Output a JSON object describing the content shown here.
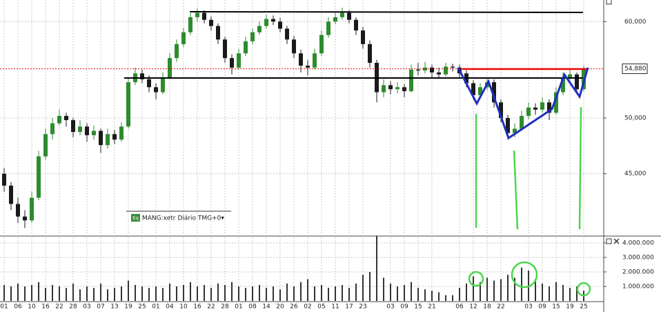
{
  "chart_data": [
    {
      "type": "candlestick",
      "legend_icon": "Eq",
      "legend_label": "MANG:xetr Diário TMG+0▾",
      "log_scale": true,
      "grid": true,
      "up_color": "#2e8b2e",
      "down_color": "#1a1a1a",
      "ylim": [
        40100,
        62500
      ],
      "yticks": [
        {
          "value": 45000,
          "label": "45,000"
        },
        {
          "value": 50000,
          "label": "50,000"
        },
        {
          "value": 60000,
          "label": "60,000"
        }
      ],
      "last_price": {
        "value": 54880,
        "label": "54,880"
      },
      "categories": [
        "01",
        null,
        "06",
        null,
        "10",
        null,
        "16",
        null,
        "22",
        null,
        "28",
        null,
        "03",
        null,
        "07",
        null,
        "13",
        null,
        "19",
        null,
        "25",
        null,
        "01",
        null,
        "04",
        null,
        "10",
        null,
        "16",
        null,
        "22",
        null,
        "28",
        null,
        "01",
        null,
        "08",
        null,
        "14",
        null,
        "20",
        null,
        "26",
        null,
        "02",
        null,
        "05",
        null,
        "11",
        null,
        "17",
        null,
        "23",
        null,
        null,
        null,
        "03",
        null,
        "09",
        null,
        "15",
        null,
        "21",
        null,
        null,
        null,
        "06",
        null,
        "12",
        null,
        "18",
        null,
        "22",
        null,
        null,
        null,
        "03",
        null,
        "09",
        null,
        "15",
        null,
        "19",
        null,
        "25"
      ],
      "ohlc": [
        [
          45000,
          45500,
          43500,
          44000
        ],
        [
          44000,
          44300,
          42000,
          42500
        ],
        [
          42500,
          43000,
          41000,
          41500
        ],
        [
          41500,
          42000,
          40600,
          41200
        ],
        [
          41200,
          43500,
          41000,
          43000
        ],
        [
          43000,
          47000,
          42800,
          46500
        ],
        [
          46500,
          49000,
          46200,
          48500
        ],
        [
          48500,
          50000,
          48000,
          49500
        ],
        [
          49500,
          50800,
          49300,
          50200
        ],
        [
          50200,
          50500,
          49200,
          49800
        ],
        [
          49800,
          50000,
          48200,
          48700
        ],
        [
          48700,
          49800,
          48400,
          49200
        ],
        [
          49200,
          49500,
          47800,
          48400
        ],
        [
          48400,
          49300,
          48000,
          48800
        ],
        [
          48800,
          49000,
          46800,
          47500
        ],
        [
          47500,
          49000,
          47200,
          48500
        ],
        [
          48500,
          48900,
          47600,
          48000
        ],
        [
          48000,
          49600,
          47800,
          49200
        ],
        [
          49200,
          54000,
          49000,
          53500
        ],
        [
          53500,
          55000,
          53200,
          54400
        ],
        [
          54400,
          54800,
          53400,
          53800
        ],
        [
          53800,
          54200,
          52500,
          53000
        ],
        [
          53000,
          53400,
          51800,
          52500
        ],
        [
          52500,
          54500,
          52300,
          54000
        ],
        [
          54000,
          56500,
          53800,
          56000
        ],
        [
          56000,
          58000,
          55600,
          57500
        ],
        [
          57500,
          59300,
          57200,
          58800
        ],
        [
          58800,
          61000,
          58500,
          60500
        ],
        [
          60500,
          61500,
          60000,
          61000
        ],
        [
          61000,
          61300,
          59800,
          60200
        ],
        [
          60200,
          60600,
          59000,
          59500
        ],
        [
          59500,
          59800,
          57500,
          58000
        ],
        [
          58000,
          58300,
          55500,
          56000
        ],
        [
          56000,
          56400,
          54300,
          55000
        ],
        [
          55000,
          57000,
          54800,
          56500
        ],
        [
          56500,
          58300,
          56200,
          57800
        ],
        [
          57800,
          59200,
          57500,
          58800
        ],
        [
          58800,
          60000,
          58500,
          59500
        ],
        [
          59500,
          60800,
          59200,
          60300
        ],
        [
          60300,
          60700,
          59600,
          60000
        ],
        [
          60000,
          60400,
          58800,
          59200
        ],
        [
          59200,
          59500,
          57500,
          58000
        ],
        [
          58000,
          58400,
          56000,
          56500
        ],
        [
          56500,
          56900,
          54500,
          55200
        ],
        [
          55200,
          55800,
          54200,
          55000
        ],
        [
          55000,
          57000,
          54800,
          56500
        ],
        [
          56500,
          59000,
          56200,
          58500
        ],
        [
          58500,
          60500,
          58200,
          60000
        ],
        [
          60000,
          61000,
          59700,
          60500
        ],
        [
          60500,
          61600,
          60200,
          61000
        ],
        [
          61000,
          61300,
          59800,
          60200
        ],
        [
          60200,
          60500,
          58500,
          59000
        ],
        [
          59000,
          59400,
          57000,
          57500
        ],
        [
          57500,
          57900,
          55000,
          55500
        ],
        [
          55500,
          55800,
          51500,
          52500
        ],
        [
          52500,
          53800,
          52000,
          53200
        ],
        [
          53200,
          53600,
          52300,
          52800
        ],
        [
          52800,
          53500,
          52400,
          53000
        ],
        [
          53000,
          53300,
          52000,
          52600
        ],
        [
          52600,
          55300,
          52500,
          54800
        ],
        [
          54800,
          55500,
          54200,
          54700
        ],
        [
          54700,
          55600,
          54400,
          55000
        ],
        [
          55000,
          55300,
          54000,
          54500
        ],
        [
          54500,
          55000,
          53900,
          54300
        ],
        [
          54300,
          55500,
          54100,
          55100
        ],
        [
          55100,
          55400,
          54600,
          55000
        ],
        [
          55000,
          55300,
          54000,
          54400
        ],
        [
          54400,
          54700,
          53000,
          53400
        ],
        [
          53400,
          53700,
          51800,
          52200
        ],
        [
          52200,
          53400,
          52000,
          53000
        ],
        [
          53000,
          54000,
          52700,
          53500
        ],
        [
          53500,
          53800,
          51000,
          51500
        ],
        [
          51500,
          51800,
          49600,
          50000
        ],
        [
          50000,
          50300,
          48000,
          48600
        ],
        [
          48600,
          49500,
          48200,
          49000
        ],
        [
          49000,
          50700,
          48800,
          50200
        ],
        [
          50200,
          51500,
          49900,
          51000
        ],
        [
          51000,
          51400,
          50300,
          50800
        ],
        [
          50800,
          52000,
          50500,
          51500
        ],
        [
          51500,
          51800,
          49800,
          50500
        ],
        [
          50500,
          53000,
          50300,
          52500
        ],
        [
          52500,
          54500,
          52200,
          54000
        ],
        [
          54000,
          54800,
          53700,
          54300
        ],
        [
          54300,
          54500,
          52300,
          52800
        ],
        [
          52800,
          55200,
          52600,
          54880
        ]
      ]
    },
    {
      "type": "bar",
      "color": "#333333",
      "ylim": [
        0,
        4400000
      ],
      "yticks": [
        {
          "value": 1000000,
          "label": "1.000.000"
        },
        {
          "value": 2000000,
          "label": "2.000.000"
        },
        {
          "value": 3000000,
          "label": "3.000.000"
        },
        {
          "value": 4000000,
          "label": "4.000.000"
        }
      ],
      "values": [
        1100000,
        1000000,
        1200000,
        1000000,
        1100000,
        1300000,
        900000,
        1100000,
        1000000,
        900000,
        1200000,
        800000,
        1000000,
        900000,
        1200000,
        800000,
        900000,
        1000000,
        1400000,
        1100000,
        1000000,
        900000,
        1000000,
        900000,
        1200000,
        1000000,
        1100000,
        1300000,
        1000000,
        1100000,
        900000,
        1200000,
        1100000,
        1300000,
        1000000,
        900000,
        1000000,
        1100000,
        900000,
        1000000,
        800000,
        1200000,
        1000000,
        1300000,
        1500000,
        1000000,
        1100000,
        900000,
        1000000,
        1100000,
        900000,
        1200000,
        1800000,
        2000000,
        4500000,
        1600000,
        1200000,
        1000000,
        1100000,
        1300000,
        900000,
        800000,
        700000,
        600000,
        400000,
        400000,
        900000,
        1200000,
        1700000,
        1300000,
        1600000,
        1400000,
        1500000,
        1800000,
        1600000,
        2300000,
        2100000,
        1500000,
        1200000,
        1000000,
        1300000,
        1100000,
        900000,
        1000000,
        700000
      ]
    }
  ]
}
